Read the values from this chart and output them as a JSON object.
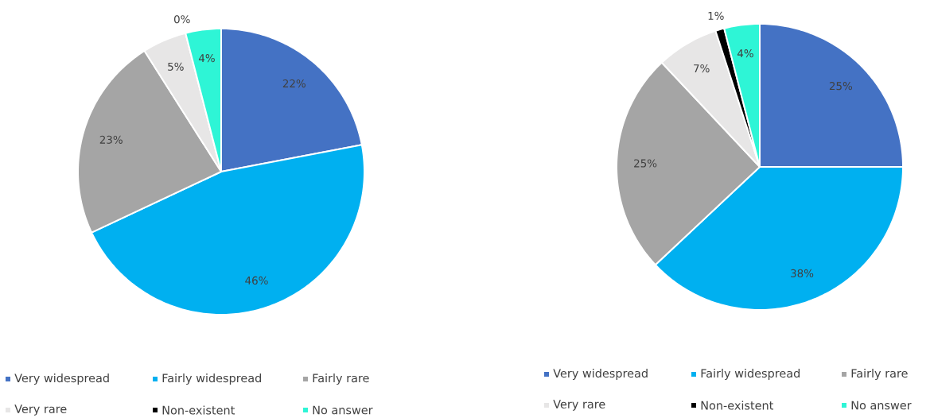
{
  "chart_data": [
    {
      "type": "pie",
      "categories": [
        "Very widespread",
        "Fairly widespread",
        "Fairly rare",
        "Very rare",
        "Non-existent",
        "No answer"
      ],
      "values": [
        22,
        46,
        23,
        5,
        0,
        4
      ],
      "value_labels": [
        "22%",
        "46%",
        "23%",
        "5%",
        "0%",
        "4%"
      ],
      "colors": [
        "#4472c4",
        "#00b0f0",
        "#a5a5a5",
        "#e7e6e6",
        "#000000",
        "#2ef5d6"
      ],
      "legend": "bottom"
    },
    {
      "type": "pie",
      "categories": [
        "Very widespread",
        "Fairly widespread",
        "Fairly rare",
        "Very rare",
        "Non-existent",
        "No answer"
      ],
      "values": [
        25,
        38,
        25,
        7,
        1,
        4
      ],
      "value_labels": [
        "25%",
        "38%",
        "25%",
        "7%",
        "1%",
        "4%"
      ],
      "colors": [
        "#4472c4",
        "#00b0f0",
        "#a5a5a5",
        "#e7e6e6",
        "#000000",
        "#2ef5d6"
      ],
      "legend": "bottom"
    }
  ]
}
